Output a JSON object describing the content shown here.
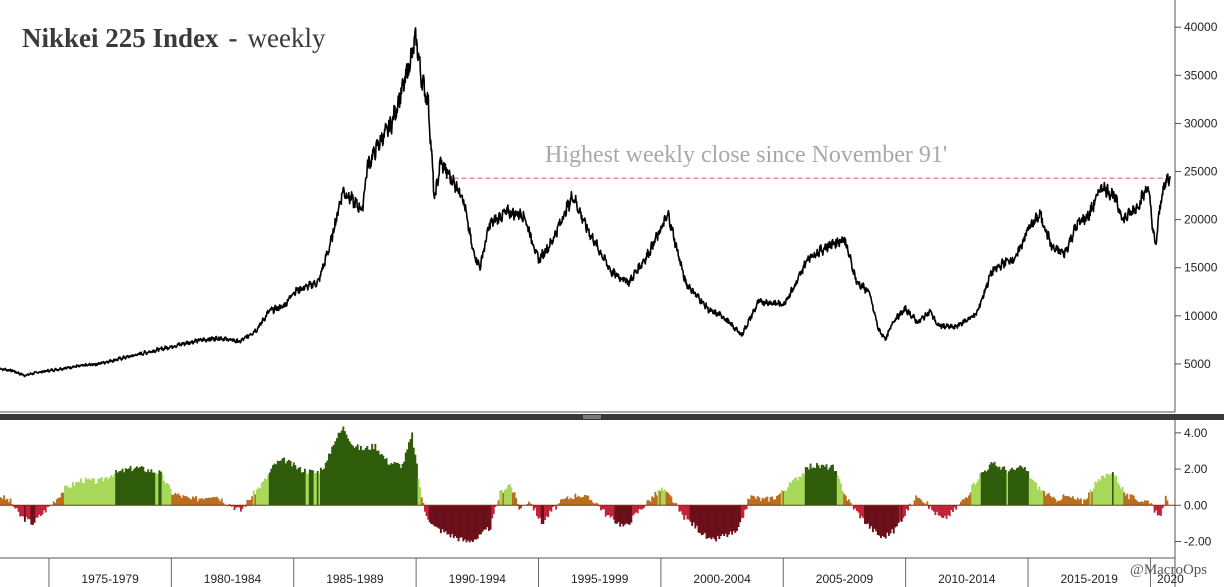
{
  "chart_data": [
    {
      "type": "line",
      "title": "Nikkei 225 Index",
      "title_separator": "-",
      "subtitle": "weekly",
      "annotation": "Highest weekly close since November 91'",
      "reference_level": 24300,
      "ylim": [
        0,
        42000
      ],
      "yticks": [
        5000,
        10000,
        15000,
        20000,
        25000,
        30000,
        35000,
        40000
      ],
      "x_range": [
        1973.0,
        2020.8
      ],
      "series": [
        {
          "x": [
            1973.0,
            1973.5,
            1974.0,
            1974.5,
            1975.0,
            1976.0,
            1977.0,
            1978.0,
            1979.0,
            1980.0,
            1981.0,
            1982.0,
            1982.8,
            1983.5,
            1984.0,
            1984.6,
            1985.0,
            1986.0,
            1986.5,
            1987.0,
            1987.8,
            1988.0,
            1988.5,
            1989.0,
            1989.5,
            1990.0,
            1990.2,
            1990.5,
            1990.75,
            1991.0,
            1991.5,
            1991.9,
            1992.3,
            1992.6,
            1993.0,
            1993.7,
            1994.4,
            1995.0,
            1995.5,
            1996.4,
            1997.0,
            1998.0,
            1998.7,
            1999.5,
            2000.3,
            2001.0,
            2001.5,
            2002.0,
            2002.5,
            2003.3,
            2004.0,
            2005.0,
            2005.5,
            2006.0,
            2007.0,
            2007.5,
            2008.0,
            2008.5,
            2008.9,
            2009.2,
            2009.5,
            2010.0,
            2010.5,
            2011.0,
            2011.3,
            2012.0,
            2012.9,
            2013.5,
            2014.0,
            2014.5,
            2015.0,
            2015.5,
            2016.0,
            2016.5,
            2017.0,
            2017.5,
            2018.0,
            2018.5,
            2018.9,
            2019.5,
            2019.9,
            2020.2,
            2020.45,
            2020.7
          ],
          "y": [
            4500,
            4300,
            3800,
            4100,
            4300,
            4700,
            5000,
            5600,
            6200,
            6800,
            7400,
            7700,
            7300,
            8600,
            10500,
            11000,
            12500,
            13500,
            17500,
            23000,
            21000,
            25500,
            28000,
            30000,
            34000,
            38900,
            35000,
            32000,
            22000,
            26000,
            24000,
            22500,
            17000,
            15000,
            19500,
            20800,
            20500,
            15800,
            17500,
            22500,
            19000,
            14500,
            13500,
            16500,
            20500,
            13500,
            12000,
            10500,
            10000,
            8000,
            11500,
            11200,
            13200,
            16000,
            17500,
            18000,
            13500,
            12500,
            8500,
            7600,
            9500,
            10700,
            9300,
            10500,
            9000,
            8800,
            10200,
            14500,
            15500,
            16000,
            19000,
            20500,
            17000,
            16500,
            19500,
            20500,
            23500,
            22500,
            20000,
            21500,
            23500,
            17000,
            22500,
            24300
          ]
        }
      ]
    },
    {
      "type": "area",
      "ylim": [
        -2.8,
        4.6
      ],
      "yticks": [
        4.0,
        2.0,
        0.0,
        -2.0
      ],
      "ytick_labels": [
        "4.00",
        "2.00",
        "0.00",
        "-2.00"
      ],
      "x_range": [
        1973.0,
        2020.8
      ],
      "categories": [
        "1975-1979",
        "1980-1984",
        "1985-1989",
        "1990-1994",
        "1995-1999",
        "2000-2004",
        "2005-2009",
        "2010-2014",
        "2015-2019",
        "2020"
      ],
      "category_starts": [
        1975,
        1980,
        1985,
        1990,
        1995,
        2000,
        2005,
        2010,
        2015,
        2020
      ],
      "series": [
        {
          "x": [
            1973.0,
            1973.4,
            1973.8,
            1974.3,
            1974.8,
            1975.3,
            1975.6,
            1976.3,
            1977.0,
            1977.5,
            1978.5,
            1979.5,
            1980.0,
            1980.8,
            1981.7,
            1982.3,
            1982.8,
            1983.3,
            1983.8,
            1984.2,
            1984.6,
            1985.2,
            1985.9,
            1986.3,
            1986.6,
            1987.0,
            1987.4,
            1987.8,
            1988.3,
            1988.8,
            1989.4,
            1989.8,
            1990.1,
            1990.3,
            1990.7,
            1991.3,
            1992.0,
            1992.5,
            1993.0,
            1993.4,
            1993.8,
            1994.2,
            1994.6,
            1995.1,
            1995.5,
            1996.0,
            1996.6,
            1997.3,
            1997.8,
            1998.5,
            1999.0,
            1999.5,
            2000.0,
            2000.4,
            2000.8,
            2001.4,
            2002.0,
            2002.5,
            2003.1,
            2003.6,
            2004.2,
            2004.7,
            2005.2,
            2005.6,
            2006.1,
            2007.0,
            2007.6,
            2008.0,
            2008.5,
            2009.0,
            2009.5,
            2010.0,
            2010.5,
            2011.0,
            2011.5,
            2012.0,
            2012.5,
            2013.0,
            2013.5,
            2014.2,
            2014.8,
            2015.3,
            2016.0,
            2016.5,
            2017.2,
            2017.8,
            2018.4,
            2019.0,
            2019.5,
            2020.0,
            2020.3,
            2020.6
          ],
          "y": [
            0.5,
            0.2,
            -0.6,
            -1.0,
            -0.3,
            0.4,
            0.9,
            1.4,
            1.3,
            1.7,
            2.1,
            1.8,
            0.7,
            0.3,
            0.6,
            0.1,
            -0.3,
            0.6,
            1.4,
            2.3,
            2.5,
            2.0,
            1.8,
            2.3,
            3.5,
            4.3,
            3.3,
            3.1,
            3.3,
            2.4,
            2.2,
            3.9,
            1.2,
            -0.3,
            -1.2,
            -1.6,
            -2.0,
            -1.8,
            -1.2,
            0.7,
            1.2,
            -0.2,
            0.3,
            -1.0,
            -0.3,
            0.3,
            0.6,
            0.2,
            -0.6,
            -1.2,
            -0.4,
            0.3,
            0.9,
            0.4,
            -0.5,
            -1.2,
            -2.0,
            -1.7,
            -1.5,
            0.5,
            0.3,
            0.5,
            1.1,
            1.6,
            2.2,
            2.1,
            0.3,
            -0.4,
            -1.2,
            -1.8,
            -1.4,
            -0.3,
            0.6,
            -0.2,
            -0.8,
            -0.2,
            0.6,
            1.7,
            2.3,
            1.9,
            2.1,
            1.1,
            0.3,
            0.5,
            0.2,
            1.3,
            1.9,
            0.5,
            0.3,
            0.2,
            -0.8,
            0.4
          ]
        }
      ],
      "colors": {
        "strong_up": "#2e5c0a",
        "up": "#a8d85a",
        "mild": "#b86e1e",
        "down": "#c0233a",
        "strong_down": "#6b0f1a"
      }
    }
  ],
  "credit": "@MacroOps"
}
